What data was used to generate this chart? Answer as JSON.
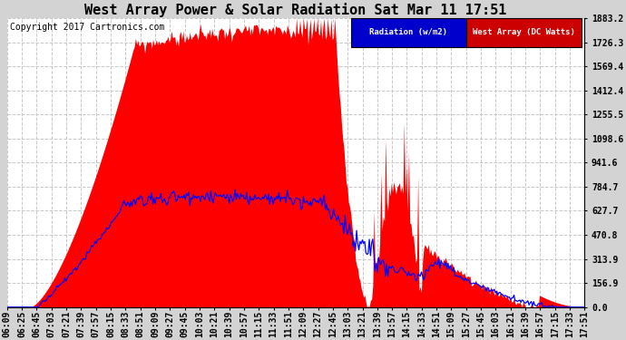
{
  "title": "West Array Power & Solar Radiation Sat Mar 11 17:51",
  "copyright": "Copyright 2017 Cartronics.com",
  "bg_color": "#d3d3d3",
  "plot_bg_color": "#ffffff",
  "grid_color": "#c8c8c8",
  "yticks": [
    0.0,
    156.9,
    313.9,
    470.8,
    627.7,
    784.7,
    941.6,
    1098.6,
    1255.5,
    1412.4,
    1569.4,
    1726.3,
    1883.2
  ],
  "ymax": 1883.2,
  "legend_radiation_label": "Radiation (w/m2)",
  "legend_west_label": "West Array (DC Watts)",
  "legend_radiation_bg": "#0000cc",
  "legend_west_bg": "#cc0000",
  "xtick_labels": [
    "06:09",
    "06:25",
    "06:45",
    "07:03",
    "07:21",
    "07:39",
    "07:57",
    "08:15",
    "08:33",
    "08:51",
    "09:09",
    "09:27",
    "09:45",
    "10:03",
    "10:21",
    "10:39",
    "10:57",
    "11:15",
    "11:33",
    "11:51",
    "12:09",
    "12:27",
    "12:45",
    "13:03",
    "13:21",
    "13:39",
    "13:57",
    "14:15",
    "14:33",
    "14:51",
    "15:09",
    "15:27",
    "15:45",
    "16:03",
    "16:21",
    "16:39",
    "16:57",
    "17:15",
    "17:33",
    "17:51"
  ],
  "title_fontsize": 11,
  "axis_label_fontsize": 7,
  "copyright_fontsize": 7
}
